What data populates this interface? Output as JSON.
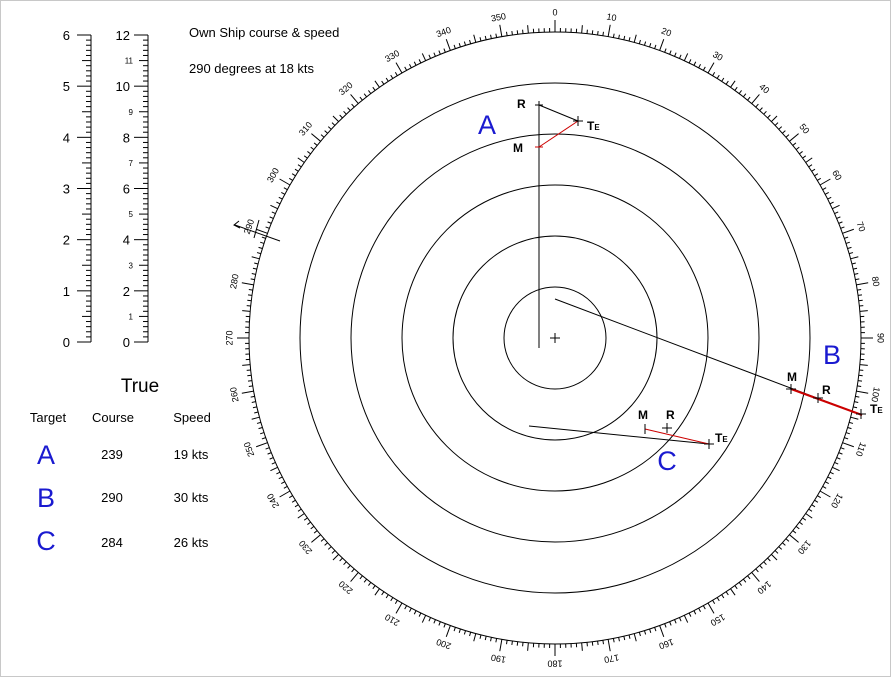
{
  "header": {
    "title": "Own Ship course & speed",
    "value": "290 degrees at 18 kts"
  },
  "scale": {
    "left_labels": [
      "0",
      "1",
      "2",
      "3",
      "4",
      "5",
      "6"
    ],
    "right_major_labels": [
      "0",
      "2",
      "4",
      "6",
      "8",
      "10",
      "12"
    ],
    "right_minor_labels": [
      "1",
      "3",
      "5",
      "7",
      "9",
      "11"
    ]
  },
  "table": {
    "title": "True",
    "headers": [
      "Target",
      "Course",
      "Speed"
    ],
    "rows": [
      {
        "target": "A",
        "course": "239",
        "speed": "19 kts"
      },
      {
        "target": "B",
        "course": "290",
        "speed": "30 kts"
      },
      {
        "target": "C",
        "course": "284",
        "speed": "26 kts"
      }
    ]
  },
  "plot": {
    "target_labels": [
      "A",
      "B",
      "C"
    ],
    "point_labels": {
      "relative": "R",
      "motion": "M",
      "true": "T",
      "true_sub": "E"
    },
    "rings": 5,
    "bearing_labels_every": 10,
    "colors": {
      "target_label": "#1a1ad0",
      "true_vector": "#cc0000",
      "line": "#000000"
    }
  }
}
